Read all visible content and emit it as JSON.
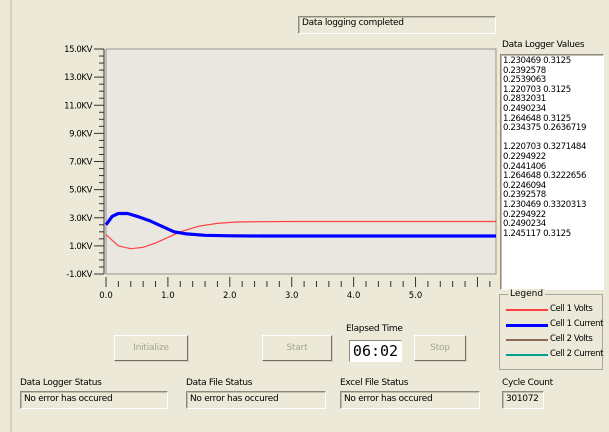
{
  "status_message": "Data logging completed",
  "logger_values": {
    "title": "Data Logger Values",
    "lines": [
      "1.230469  0.3125",
      "0.2392578",
      "0.2539063",
      "1.220703  0.3125",
      "0.2832031",
      "0.2490234",
      "1.264648  0.3125",
      "0.234375  0.2636719",
      "",
      "1.220703  0.3271484",
      "0.2294922",
      "0.2441406",
      "1.264648  0.3222656",
      "0.2246094",
      "0.2392578",
      "1.230469  0.3320313",
      "0.2294922",
      "0.2490234",
      "1.245117  0.3125"
    ]
  },
  "chart_data": {
    "type": "line",
    "xlabel": "Elapsed Time",
    "ylabel": "",
    "y_tick_labels": [
      "15.0KV",
      "13.0KV",
      "11.0KV",
      "9.0KV",
      "7.0KV",
      "5.0KV",
      "3.0KV",
      "1.0KV",
      "-1.0KV"
    ],
    "x_tick_labels": [
      "0.0",
      "1.0",
      "2.0",
      "3.0",
      "4.0",
      "5.0"
    ],
    "xlim": [
      0,
      6.3
    ],
    "ylim": [
      -1,
      15
    ],
    "grid": false,
    "series": [
      {
        "name": "Cell 1 Volts",
        "color": "#ff4040",
        "x": [
          0,
          0.2,
          0.4,
          0.6,
          0.8,
          1.0,
          1.2,
          1.5,
          1.8,
          2.1,
          2.5,
          3.0,
          4.0,
          5.0,
          6.3
        ],
        "y": [
          1.8,
          1.0,
          0.8,
          0.9,
          1.2,
          1.6,
          2.0,
          2.4,
          2.6,
          2.7,
          2.72,
          2.73,
          2.73,
          2.73,
          2.73
        ]
      },
      {
        "name": "Cell 1 Current",
        "color": "#0000ff",
        "x": [
          0,
          0.1,
          0.2,
          0.35,
          0.5,
          0.7,
          0.9,
          1.1,
          1.3,
          1.6,
          2.0,
          2.5,
          3.0,
          4.0,
          5.0,
          6.3
        ],
        "y": [
          2.5,
          3.1,
          3.3,
          3.3,
          3.1,
          2.8,
          2.4,
          2.0,
          1.85,
          1.75,
          1.72,
          1.7,
          1.7,
          1.7,
          1.7,
          1.7
        ]
      },
      {
        "name": "Cell 2 Volts",
        "color": "#8c6a5a",
        "x": [],
        "y": []
      },
      {
        "name": "Cell 2 Current",
        "color": "#00a090",
        "x": [],
        "y": []
      }
    ]
  },
  "buttons": {
    "initialize": "Initialize",
    "start": "Start",
    "stop": "Stop"
  },
  "elapsed_time": {
    "label": "Elapsed Time",
    "value": "06:02"
  },
  "legend": {
    "title": "Legend"
  },
  "status_panels": {
    "logger": {
      "label": "Data Logger Status",
      "value": "No error has occured"
    },
    "file": {
      "label": "Data File Status",
      "value": "No error has occured"
    },
    "excel": {
      "label": "Excel File Status",
      "value": "No error has occured"
    },
    "cycle": {
      "label": "Cycle Count",
      "value": "301072"
    }
  }
}
